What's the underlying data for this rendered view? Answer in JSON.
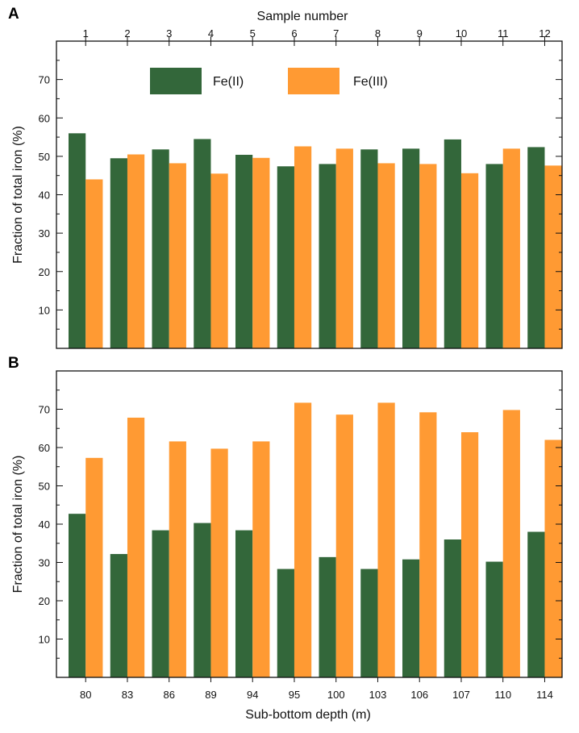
{
  "figure": {
    "top_axis_title": "Sample number",
    "bottom_axis_title": "Sub-bottom depth (m)"
  },
  "colors": {
    "fe2": "#33673a",
    "fe3": "#ff9a33"
  },
  "chart_data": [
    {
      "panel": "A",
      "type": "bar",
      "title": "",
      "xlabel": "Sample number",
      "ylabel": "Fraction of total iron (%)",
      "categories": [
        "1",
        "2",
        "3",
        "4",
        "5",
        "6",
        "7",
        "8",
        "9",
        "10",
        "11",
        "12"
      ],
      "ylim": [
        0,
        80
      ],
      "yticks": [
        10,
        20,
        30,
        40,
        50,
        60,
        70
      ],
      "legend": "top",
      "series": [
        {
          "name": "Fe(II)",
          "values": [
            56.0,
            49.5,
            51.8,
            54.5,
            50.4,
            47.4,
            48.0,
            51.8,
            52.0,
            54.4,
            48.0,
            52.4
          ]
        },
        {
          "name": "Fe(III)",
          "values": [
            44.0,
            50.5,
            48.2,
            45.5,
            49.6,
            52.6,
            52.0,
            48.2,
            48.0,
            45.6,
            52.0,
            47.6
          ]
        }
      ]
    },
    {
      "panel": "B",
      "type": "bar",
      "title": "",
      "xlabel": "Sub-bottom depth (m)",
      "ylabel": "Fraction of total iron (%)",
      "categories": [
        "80",
        "83",
        "86",
        "89",
        "94",
        "95",
        "100",
        "103",
        "106",
        "107",
        "110",
        "114"
      ],
      "ylim": [
        0,
        80
      ],
      "yticks": [
        10,
        20,
        30,
        40,
        50,
        60,
        70
      ],
      "legend": "none",
      "series": [
        {
          "name": "Fe(II)",
          "values": [
            42.7,
            32.2,
            38.4,
            40.3,
            38.4,
            28.3,
            31.4,
            28.3,
            30.8,
            36.0,
            30.2,
            38.0
          ]
        },
        {
          "name": "Fe(III)",
          "values": [
            57.3,
            67.8,
            61.6,
            59.7,
            61.6,
            71.7,
            68.6,
            71.7,
            69.2,
            64.0,
            69.8,
            62.0
          ]
        }
      ]
    }
  ]
}
